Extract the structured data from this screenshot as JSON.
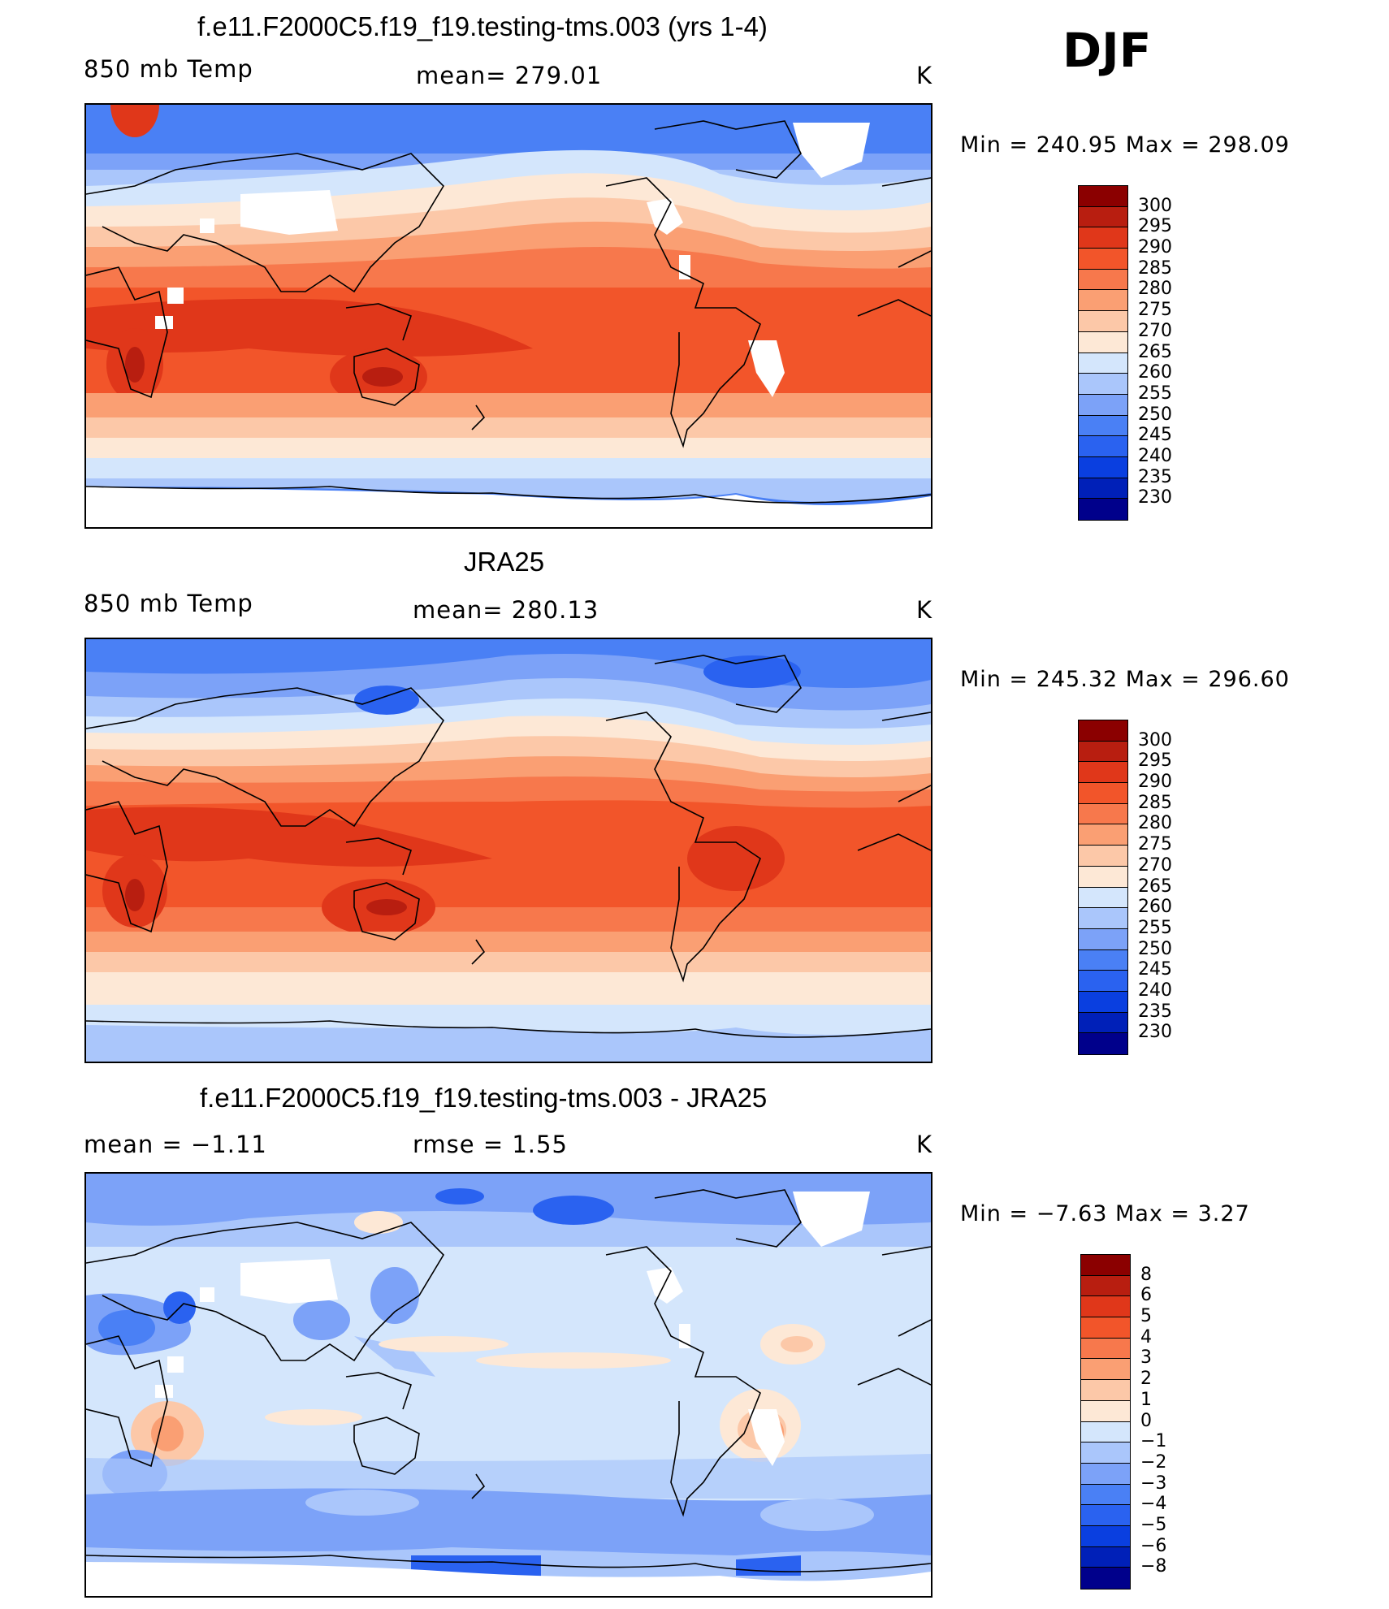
{
  "season": "DJF",
  "units": "K",
  "colors": {
    "temp": [
      "#00008b",
      "#0020b8",
      "#0a3fe0",
      "#2a62f0",
      "#4a80f5",
      "#7ca2f8",
      "#aac6fb",
      "#d4e6fc",
      "#fde8d6",
      "#fcc8a8",
      "#fa9f73",
      "#f7784c",
      "#f2552a",
      "#e0371a",
      "#b81e10",
      "#8b0000"
    ],
    "diff": [
      "#00008b",
      "#0020b8",
      "#0a3fe0",
      "#2a62f0",
      "#4a80f5",
      "#7ca2f8",
      "#aac6fb",
      "#d4e6fc",
      "#fde8d6",
      "#fcc8a8",
      "#fa9f73",
      "#f7784c",
      "#f2552a",
      "#e0371a",
      "#b81e10",
      "#8b0000"
    ]
  },
  "panels": [
    {
      "title": "f.e11.F2000C5.f19_f19.testing-tms.003 (yrs 1-4)",
      "left_label": "850 mb Temp",
      "center_label": "mean=  279.01",
      "right_label": "K",
      "minmax": "Min  =  240.95  Max  =  298.09",
      "colorbar_labels": [
        "300",
        "295",
        "290",
        "285",
        "280",
        "275",
        "270",
        "265",
        "260",
        "255",
        "250",
        "245",
        "240",
        "235",
        "230"
      ]
    },
    {
      "title": "JRA25",
      "left_label": "850 mb Temp",
      "center_label": "mean=  280.13",
      "right_label": "K",
      "minmax": "Min  =  245.32  Max  =  296.60",
      "colorbar_labels": [
        "300",
        "295",
        "290",
        "285",
        "280",
        "275",
        "270",
        "265",
        "260",
        "255",
        "250",
        "245",
        "240",
        "235",
        "230"
      ]
    },
    {
      "title": "f.e11.F2000C5.f19_f19.testing-tms.003 - JRA25",
      "left_label": "mean  =    −1.11",
      "center_label": "rmse  =     1.55",
      "right_label": "K",
      "minmax": "Min  =    −7.63  Max  =     3.27",
      "colorbar_labels": [
        "8",
        "6",
        "5",
        "4",
        "3",
        "2",
        "1",
        "0",
        "−1",
        "−2",
        "−3",
        "−4",
        "−5",
        "−6",
        "−8"
      ]
    }
  ]
}
